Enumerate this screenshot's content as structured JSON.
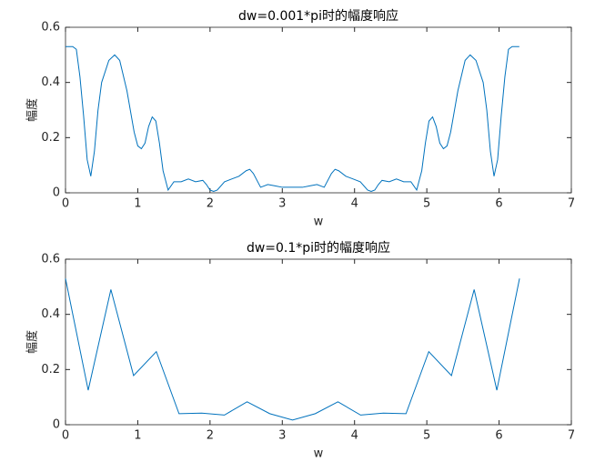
{
  "chart_data": [
    {
      "type": "line",
      "title": "dw=0.001*pi时的幅度响应",
      "xlabel": "w",
      "ylabel": "幅度",
      "xlim": [
        0,
        7
      ],
      "xticks": [
        0,
        1,
        2,
        3,
        4,
        5,
        6,
        7
      ],
      "ylim": [
        0,
        0.6
      ],
      "yticks": [
        0,
        0.2,
        0.4,
        0.6
      ],
      "series": [
        {
          "name": "amplitude",
          "color": "#0072bd",
          "x": [
            0,
            0.1,
            0.15,
            0.2,
            0.25,
            0.3,
            0.35,
            0.4,
            0.45,
            0.5,
            0.6,
            0.68,
            0.75,
            0.85,
            0.95,
            1.0,
            1.05,
            1.1,
            1.15,
            1.2,
            1.25,
            1.3,
            1.35,
            1.42,
            1.5,
            1.6,
            1.7,
            1.8,
            1.9,
            1.95,
            2.0,
            2.05,
            2.1,
            2.2,
            2.3,
            2.4,
            2.5,
            2.55,
            2.6,
            2.7,
            2.8,
            2.9,
            3.0,
            3.14,
            3.28,
            3.38,
            3.48,
            3.58,
            3.68,
            3.73,
            3.78,
            3.88,
            3.98,
            4.08,
            4.18,
            4.23,
            4.28,
            4.33,
            4.38,
            4.48,
            4.58,
            4.68,
            4.78,
            4.86,
            4.93,
            4.98,
            5.03,
            5.08,
            5.13,
            5.18,
            5.23,
            5.28,
            5.33,
            5.43,
            5.53,
            5.6,
            5.68,
            5.78,
            5.83,
            5.88,
            5.93,
            5.98,
            6.03,
            6.08,
            6.13,
            6.18,
            6.28
          ],
          "values": [
            0.53,
            0.53,
            0.52,
            0.42,
            0.28,
            0.12,
            0.06,
            0.15,
            0.3,
            0.4,
            0.48,
            0.5,
            0.48,
            0.37,
            0.22,
            0.17,
            0.16,
            0.18,
            0.24,
            0.275,
            0.26,
            0.18,
            0.08,
            0.01,
            0.04,
            0.04,
            0.05,
            0.04,
            0.045,
            0.03,
            0.01,
            0.005,
            0.01,
            0.04,
            0.05,
            0.06,
            0.08,
            0.085,
            0.07,
            0.02,
            0.03,
            0.025,
            0.02,
            0.02,
            0.02,
            0.025,
            0.03,
            0.02,
            0.07,
            0.085,
            0.08,
            0.06,
            0.05,
            0.04,
            0.01,
            0.005,
            0.01,
            0.03,
            0.045,
            0.04,
            0.05,
            0.04,
            0.04,
            0.01,
            0.08,
            0.18,
            0.26,
            0.275,
            0.24,
            0.18,
            0.16,
            0.17,
            0.22,
            0.37,
            0.48,
            0.5,
            0.48,
            0.4,
            0.3,
            0.15,
            0.06,
            0.12,
            0.28,
            0.42,
            0.52,
            0.53,
            0.53
          ]
        }
      ]
    },
    {
      "type": "line",
      "title": "dw=0.1*pi时的幅度响应",
      "xlabel": "w",
      "ylabel": "幅度",
      "xlim": [
        0,
        7
      ],
      "xticks": [
        0,
        1,
        2,
        3,
        4,
        5,
        6,
        7
      ],
      "ylim": [
        0,
        0.6
      ],
      "yticks": [
        0,
        0.2,
        0.4,
        0.6
      ],
      "series": [
        {
          "name": "amplitude",
          "color": "#0072bd",
          "x": [
            0,
            0.314,
            0.628,
            0.942,
            1.257,
            1.571,
            1.885,
            2.199,
            2.513,
            2.827,
            3.142,
            3.456,
            3.77,
            4.084,
            4.398,
            4.712,
            5.027,
            5.341,
            5.655,
            5.969,
            6.283
          ],
          "values": [
            0.53,
            0.125,
            0.49,
            0.178,
            0.265,
            0.04,
            0.042,
            0.035,
            0.083,
            0.04,
            0.017,
            0.04,
            0.083,
            0.035,
            0.042,
            0.04,
            0.265,
            0.178,
            0.49,
            0.125,
            0.53
          ]
        }
      ]
    }
  ]
}
